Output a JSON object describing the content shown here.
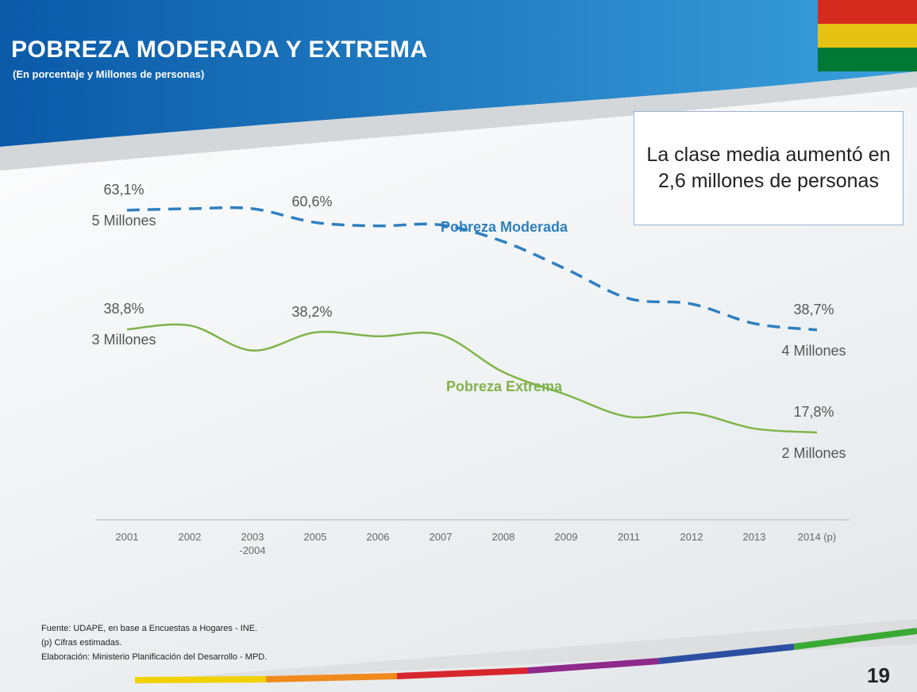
{
  "header": {
    "title": "POBREZA MODERADA Y EXTREMA",
    "subtitle": "(En porcentaje y Millones de personas)"
  },
  "callout": "La clase media aumentó en 2,6 millones de personas",
  "chart_data": {
    "type": "line",
    "categories": [
      "2001",
      "2002",
      "2003\n-2004",
      "2005",
      "2006",
      "2007",
      "2008",
      "2009",
      "2011",
      "2012",
      "2013",
      "2014 (p)"
    ],
    "series": [
      {
        "name": "Pobreza Moderada",
        "color": "#2e7fc0",
        "dashed": true,
        "values": [
          63.1,
          63.4,
          63.4,
          60.6,
          59.9,
          60.1,
          56.7,
          51.1,
          45.1,
          44.0,
          40.0,
          38.7
        ],
        "value_labels": [
          "63,1%",
          null,
          null,
          "60,6%",
          null,
          null,
          null,
          null,
          null,
          null,
          null,
          "38,7%"
        ],
        "people_labels": [
          "5 Millones",
          null,
          null,
          null,
          null,
          null,
          null,
          null,
          null,
          null,
          null,
          "4 Millones"
        ]
      },
      {
        "name": "Pobreza Extrema",
        "color": "#7fb34a",
        "dashed": false,
        "values": [
          38.8,
          39.6,
          34.5,
          38.2,
          37.4,
          37.7,
          30.1,
          25.5,
          21.0,
          21.8,
          18.6,
          17.8
        ],
        "value_labels": [
          "38,8%",
          null,
          null,
          "38,2%",
          null,
          null,
          null,
          null,
          null,
          null,
          null,
          "17,8%"
        ],
        "people_labels": [
          "3 Millones",
          null,
          null,
          null,
          null,
          null,
          null,
          null,
          null,
          null,
          null,
          "2 Millones"
        ]
      }
    ]
  },
  "footer": {
    "notes": [
      "Fuente: UDAPE, en base a Encuestas a Hogares - INE.",
      "(p) Cifras estimadas.",
      "Elaboración: Ministerio Planificación del Desarrollo - MPD."
    ],
    "page_number": "19"
  }
}
